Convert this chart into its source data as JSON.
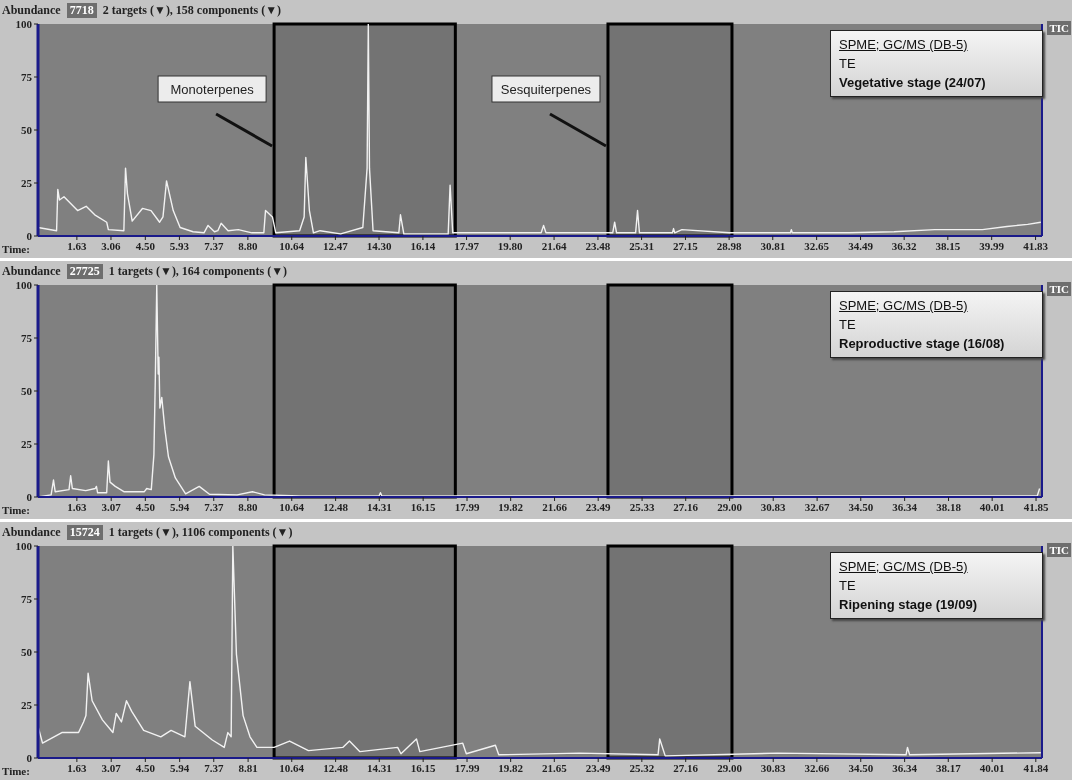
{
  "chart_data": [
    {
      "type": "line",
      "ylabel": "Abundance",
      "subtitle": "7718",
      "title": "2 targets (▼), 158 components (▼)",
      "xlabel": "Time:",
      "annotations": [
        "SPME; GC/MS (DB-5)",
        "TE",
        "Vegetative stage (24/07)",
        "TIC"
      ],
      "x": [
        0,
        0.78,
        0.83,
        0.9,
        1.09,
        1.66,
        2.02,
        2.38,
        2.88,
        2.95,
        3.6,
        3.67,
        3.75,
        3.95,
        4.38,
        4.74,
        5.1,
        5.24,
        5.39,
        5.67,
        5.96,
        6.5,
        6.96,
        7.13,
        7.4,
        7.54,
        7.68,
        7.97,
        8.4,
        8.97,
        9.47,
        9.54,
        9.83,
        9.97,
        10.97,
        11.16,
        11.23,
        11.38,
        11.55,
        11.83,
        12.69,
        13.62,
        13.8,
        13.85,
        13.9,
        14.05,
        15.13,
        15.2,
        15.34,
        17.2,
        17.28,
        17.39,
        19,
        21.1,
        21.2,
        21.3,
        24.1,
        24.18,
        24.26,
        25.06,
        25.14,
        25.22,
        26.6,
        26.65,
        26.7,
        27.0,
        29,
        31.55,
        31.59,
        31.63,
        34,
        35.9,
        37.6,
        39.6,
        40.63,
        41.5,
        42.05
      ],
      "series": [
        {
          "color": "#f2f2f2",
          "values": [
            4,
            2.5,
            22,
            17,
            18.5,
            12,
            14,
            10,
            6.5,
            3,
            2.5,
            32,
            20,
            7,
            13,
            12,
            6.5,
            9,
            26,
            12,
            4,
            2,
            1.5,
            5,
            2,
            2.5,
            6,
            2.5,
            3,
            1.5,
            1.5,
            12,
            9,
            1.5,
            2.5,
            9,
            37,
            12,
            1.5,
            2.5,
            1,
            4,
            32,
            100,
            32,
            2.5,
            1.5,
            10,
            1,
            1,
            24,
            1.5,
            1.5,
            1.5,
            5,
            1.5,
            1.5,
            6.5,
            1.5,
            1.5,
            12,
            1.5,
            1.5,
            3.5,
            1.5,
            3,
            1.5,
            1.5,
            3,
            1.5,
            1.5,
            2,
            3,
            3,
            4.5,
            5.5,
            6.5
          ]
        }
      ],
      "xlim": [
        0,
        42.1
      ],
      "ylim": [
        0,
        100
      ],
      "yticks": [
        0,
        25,
        50,
        75,
        100
      ],
      "xticks": [
        1.63,
        3.06,
        {
          "value": 4.5,
          "label": "4.50"
        },
        5.93,
        7.37,
        {
          "value": 8.8,
          "label": "8.80"
        },
        10.64,
        12.47,
        {
          "value": 14.3,
          "label": "14.30"
        },
        16.14,
        17.97,
        {
          "value": 19.8,
          "label": "19.80"
        },
        21.64,
        23.48,
        25.31,
        27.15,
        28.98,
        30.81,
        32.65,
        34.49,
        36.32,
        38.15,
        39.99,
        41.83
      ],
      "bands": [
        {
          "axis": "x",
          "from": 9.9,
          "to": 17.5,
          "color": "#000000",
          "label": "Monoterpenes"
        },
        {
          "axis": "x",
          "from": 23.9,
          "to": 29.1,
          "color": "#000000",
          "label": "Sesquiterpenes"
        }
      ]
    },
    {
      "type": "line",
      "ylabel": "Abundance",
      "subtitle": "27725",
      "title": "1 targets (▼), 164 components (▼)",
      "xlabel": "Time:",
      "annotations": [
        "SPME; GC/MS (DB-5)",
        "TE",
        "Reproductive stage (16/08)",
        "TIC"
      ],
      "x": [
        0,
        0.55,
        0.65,
        0.72,
        1.3,
        1.37,
        1.44,
        2.0,
        2.4,
        2.45,
        2.5,
        2.88,
        2.95,
        3.02,
        3.24,
        3.6,
        4.46,
        4.56,
        4.75,
        4.86,
        4.92,
        4.98,
        5.04,
        5.07,
        5.11,
        5.19,
        5.32,
        5.47,
        5.76,
        6.19,
        6.76,
        7.19,
        8.35,
        8.99,
        9.5,
        11,
        14.3,
        14.36,
        14.42,
        20,
        25,
        30,
        35,
        40,
        41.9,
        42.0
      ],
      "series": [
        {
          "color": "#f2f2f2",
          "values": [
            0,
            1,
            8,
            2.5,
            3.5,
            10,
            4,
            3,
            4,
            5,
            2,
            2,
            17,
            7,
            5,
            2.5,
            2.5,
            4,
            3.5,
            20,
            56,
            100,
            58,
            66,
            42,
            47,
            32,
            19,
            9,
            1.5,
            5,
            1.3,
            1,
            2.5,
            1,
            0.5,
            0.5,
            2,
            0.5,
            0.5,
            0.5,
            0.5,
            0.5,
            0.5,
            0.5,
            4
          ]
        }
      ],
      "xlim": [
        0,
        42.1
      ],
      "ylim": [
        0,
        100
      ],
      "yticks": [
        0,
        25,
        50,
        75,
        100
      ],
      "xticks": [
        1.63,
        3.07,
        {
          "value": 4.5,
          "label": "4.50"
        },
        5.94,
        7.37,
        {
          "value": 8.8,
          "label": "8.80"
        },
        10.64,
        12.48,
        14.31,
        16.15,
        17.99,
        19.82,
        21.66,
        23.49,
        25.33,
        27.16,
        {
          "value": 29,
          "label": "29.00"
        },
        30.83,
        32.67,
        {
          "value": 34.5,
          "label": "34.50"
        },
        36.34,
        38.18,
        40.01,
        41.85
      ],
      "bands": [
        {
          "axis": "x",
          "from": 9.9,
          "to": 17.5,
          "color": "#000000"
        },
        {
          "axis": "x",
          "from": 23.9,
          "to": 29.1,
          "color": "#000000"
        }
      ]
    },
    {
      "type": "line",
      "ylabel": "Abundance",
      "subtitle": "15724",
      "title": "1 targets (▼), 1106 components (▼)",
      "xlabel": "Time:",
      "annotations": [
        "SPME; GC/MS (DB-5)",
        "TE",
        "Ripening stage (19/09)",
        "TIC"
      ],
      "x": [
        0,
        0.19,
        1.0,
        1.7,
        1.91,
        2.01,
        2.1,
        2.27,
        2.7,
        3.14,
        3.28,
        3.5,
        3.71,
        3.93,
        4.43,
        5.15,
        5.58,
        6.16,
        6.37,
        6.59,
        7.31,
        7.81,
        7.96,
        8.1,
        8.17,
        8.32,
        8.6,
        8.89,
        9.18,
        9.9,
        10.55,
        11.34,
        12.78,
        13.06,
        13.5,
        15.08,
        15.22,
        15.87,
        16.01,
        17.81,
        17.96,
        19.18,
        19.32,
        22.7,
        26.0,
        26.07,
        26.3,
        31.0,
        36.4,
        36.46,
        36.55,
        42.05
      ],
      "series": [
        {
          "color": "#f2f2f2",
          "values": [
            15,
            7,
            12,
            12,
            17,
            20,
            40,
            27,
            18,
            12,
            21,
            17,
            27,
            22,
            13,
            10,
            13,
            10,
            36,
            15,
            8.5,
            5,
            12,
            10,
            100,
            49,
            20,
            10,
            5,
            5,
            8,
            3.5,
            5,
            8,
            3,
            5,
            2,
            9,
            3,
            7,
            2,
            6,
            1.5,
            2.3,
            1.5,
            9,
            1,
            2.3,
            1.5,
            5,
            1.5,
            2.5
          ]
        }
      ],
      "xlim": [
        0,
        42.1
      ],
      "ylim": [
        0,
        100
      ],
      "yticks": [
        0,
        25,
        50,
        75,
        100
      ],
      "xticks": [
        1.63,
        3.07,
        {
          "value": 4.5,
          "label": "4.50"
        },
        5.94,
        7.37,
        8.81,
        10.64,
        12.48,
        14.31,
        16.15,
        17.99,
        19.82,
        21.65,
        23.49,
        25.32,
        27.16,
        {
          "value": 29,
          "label": "29.00"
        },
        30.83,
        32.66,
        {
          "value": 34.5,
          "label": "34.50"
        },
        36.34,
        38.17,
        40.01,
        41.84
      ],
      "bands": [
        {
          "axis": "x",
          "from": 9.9,
          "to": 17.5,
          "color": "#000000"
        },
        {
          "axis": "x",
          "from": 23.9,
          "to": 29.1,
          "color": "#000000"
        }
      ]
    }
  ]
}
